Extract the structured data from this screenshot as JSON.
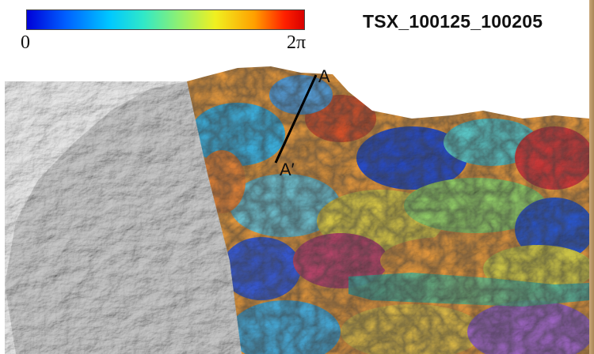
{
  "colorbar": {
    "min_label": "0",
    "max_label": "2π",
    "colors": [
      "#0000d8",
      "#0060ff",
      "#00c8ff",
      "#30e8c8",
      "#90f070",
      "#f0f020",
      "#ffa000",
      "#ff2000",
      "#d80000"
    ]
  },
  "title": "TSX_100125_100205",
  "profile": {
    "start_label": "A",
    "end_label": "A′"
  },
  "colors": {
    "hillshade": "#b4b4b4",
    "profile_line": "#000000",
    "background": "#ffffff"
  }
}
